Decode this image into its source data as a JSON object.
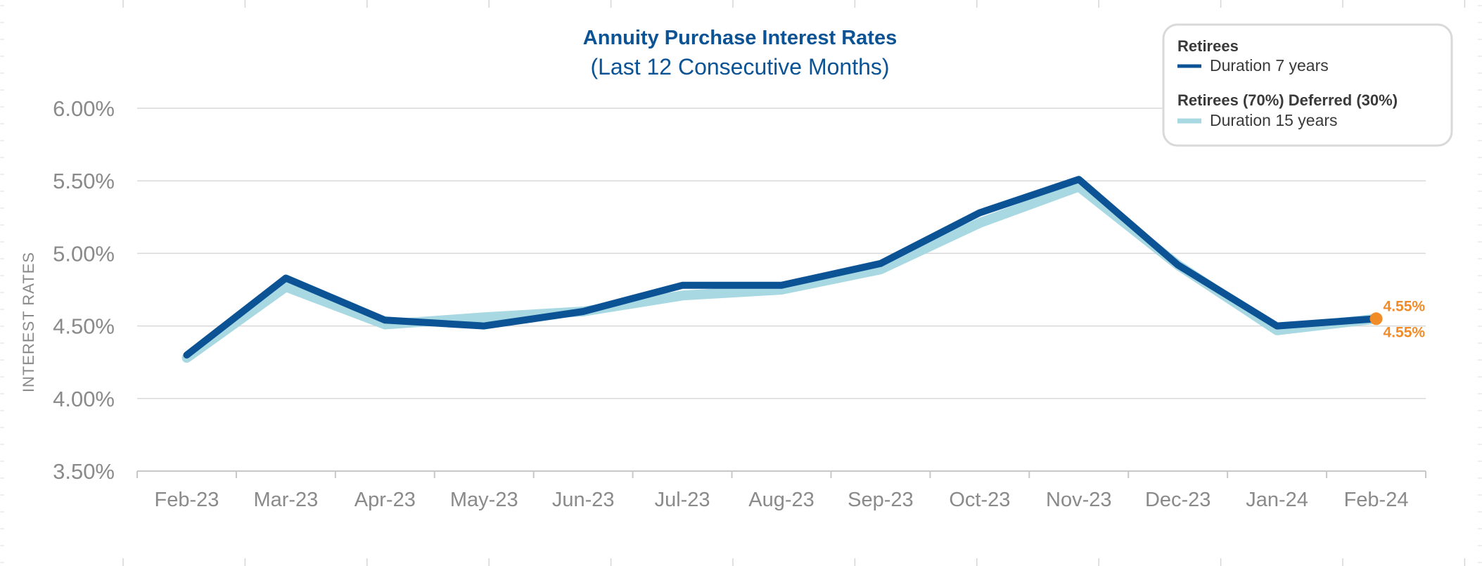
{
  "chart_data": {
    "type": "line",
    "title": "Annuity Purchase Interest Rates",
    "subtitle": "(Last 12 Consecutive Months)",
    "ylabel": "INTEREST RATES",
    "xlabel": "",
    "ylim": [
      3.5,
      6.0
    ],
    "yticks": [
      3.5,
      4.0,
      4.5,
      5.0,
      5.5,
      6.0
    ],
    "ytick_labels": [
      "3.50%",
      "4.00%",
      "4.50%",
      "5.00%",
      "5.50%",
      "6.00%"
    ],
    "categories": [
      "Feb-23",
      "Mar-23",
      "Apr-23",
      "May-23",
      "Jun-23",
      "Jul-23",
      "Aug-23",
      "Sep-23",
      "Oct-23",
      "Nov-23",
      "Dec-23",
      "Jan-24",
      "Feb-24"
    ],
    "grid": true,
    "legend_position": "top-right",
    "series": [
      {
        "name": "Duration 7 years",
        "group": "Retirees",
        "color": "#0b5394",
        "values": [
          4.3,
          4.83,
          4.54,
          4.5,
          4.6,
          4.78,
          4.78,
          4.93,
          5.28,
          5.51,
          4.92,
          4.5,
          4.55
        ]
      },
      {
        "name": "Duration 15 years",
        "group": "Retirees (70%) Deferred (30%)",
        "color": "#a8d8e2",
        "values": [
          4.28,
          4.77,
          4.51,
          4.56,
          4.6,
          4.71,
          4.75,
          4.89,
          5.21,
          5.46,
          4.92,
          4.47,
          4.55
        ]
      }
    ],
    "annotations": [
      {
        "series": 0,
        "index": 12,
        "label": "4.55%",
        "position": "above"
      },
      {
        "series": 1,
        "index": 12,
        "label": "4.55%",
        "position": "below"
      }
    ],
    "highlight_color": "#f28c28",
    "title_color": "#0b5394"
  }
}
